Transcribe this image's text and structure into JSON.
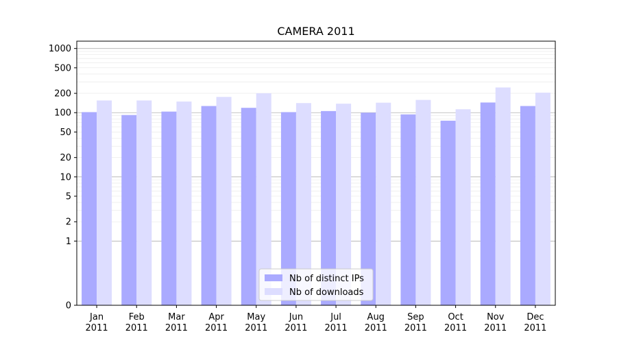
{
  "chart_data": {
    "type": "bar",
    "title": "CAMERA 2011",
    "xlabel": "",
    "ylabel": "",
    "yscale": "symlog",
    "ylim": [
      0,
      1300
    ],
    "yticks": [
      0,
      1,
      2,
      5,
      10,
      20,
      50,
      100,
      200,
      500,
      1000
    ],
    "grid": true,
    "legend_position": "lower center",
    "categories": [
      "Jan\n2011",
      "Feb\n2011",
      "Mar\n2011",
      "Apr\n2011",
      "May\n2011",
      "Jun\n2011",
      "Jul\n2011",
      "Aug\n2011",
      "Sep\n2011",
      "Oct\n2011",
      "Nov\n2011",
      "Dec\n2011"
    ],
    "series": [
      {
        "name": "Nb of distinct IPs",
        "color": "#aaaaff",
        "values": [
          102,
          92,
          104,
          127,
          119,
          102,
          106,
          100,
          94,
          75,
          144,
          127
        ]
      },
      {
        "name": "Nb of downloads",
        "color": "#ddddff",
        "values": [
          155,
          155,
          149,
          176,
          201,
          141,
          138,
          143,
          158,
          113,
          247,
          205
        ]
      }
    ]
  }
}
